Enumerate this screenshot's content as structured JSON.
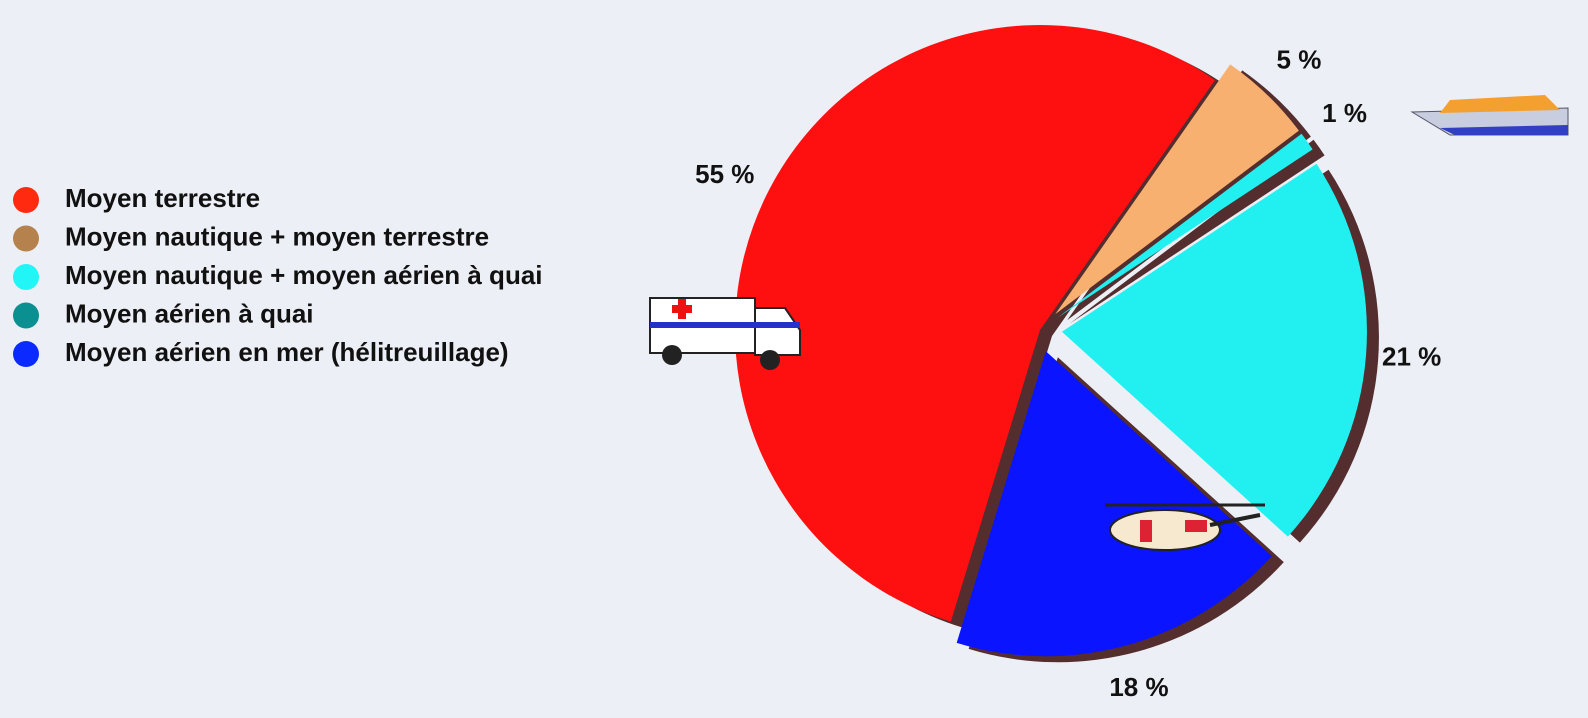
{
  "chart_data": {
    "type": "pie",
    "categories": [
      "Moyen terrestre",
      "Moyen nautique + moyen terrestre",
      "Moyen nautique + moyen aérien à quai",
      "Moyen aérien à quai",
      "Moyen aérien en mer (hélitreuillage)"
    ],
    "values": [
      55,
      5,
      1,
      21,
      18
    ],
    "value_labels": [
      "55 %",
      "5 %",
      "1 %",
      "21 %",
      "18 %"
    ],
    "colors": [
      "#ff1010",
      "#f8b070",
      "#22f0f0",
      "#22f0f0",
      "#0a14ff"
    ],
    "legend_colors": [
      "#ff2a10",
      "#b5824e",
      "#22f5f5",
      "#0a9090",
      "#0a2aff"
    ],
    "legend": "left"
  }
}
